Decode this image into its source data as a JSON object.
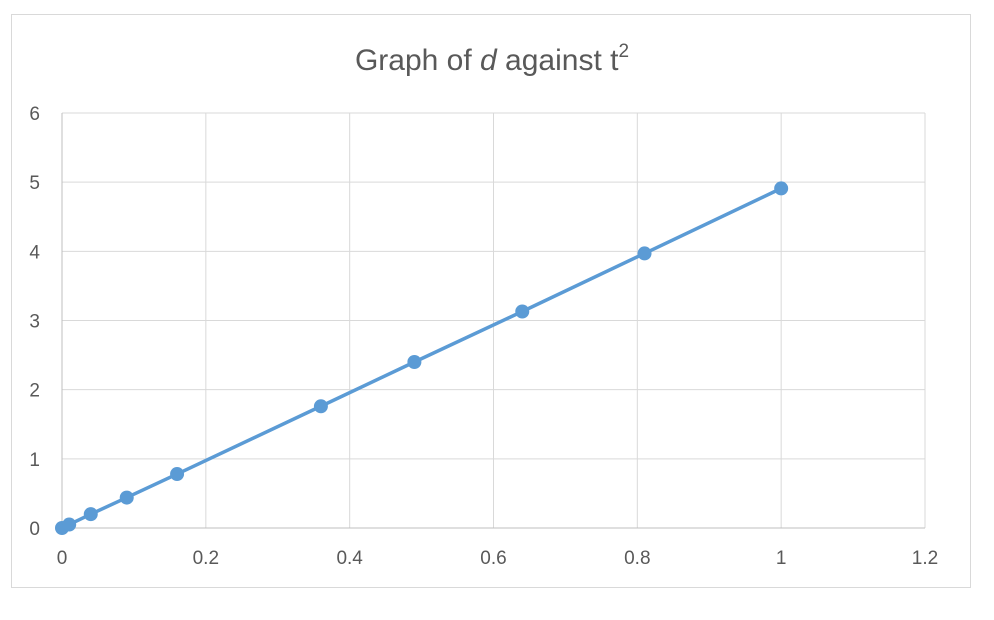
{
  "chart_data": {
    "type": "scatter",
    "title_prefix": "Graph of ",
    "title_var": "d",
    "title_mid": " against t",
    "title_sup": "2",
    "xlabel": "",
    "ylabel": "",
    "xlim": [
      0,
      1.2
    ],
    "ylim": [
      0,
      6
    ],
    "x_ticks": [
      "0",
      "0.2",
      "0.4",
      "0.6",
      "0.8",
      "1",
      "1.2"
    ],
    "y_ticks": [
      "0",
      "1",
      "2",
      "3",
      "4",
      "5",
      "6"
    ],
    "grid": true,
    "legend": "none",
    "series": [
      {
        "color": "#5b9bd5",
        "line": true,
        "x": [
          0,
          0.01,
          0.04,
          0.09,
          0.16,
          0.36,
          0.49,
          0.64,
          0.81,
          1.0
        ],
        "y": [
          0,
          0.05,
          0.2,
          0.44,
          0.78,
          1.76,
          2.4,
          3.13,
          3.97,
          4.91
        ]
      }
    ]
  }
}
